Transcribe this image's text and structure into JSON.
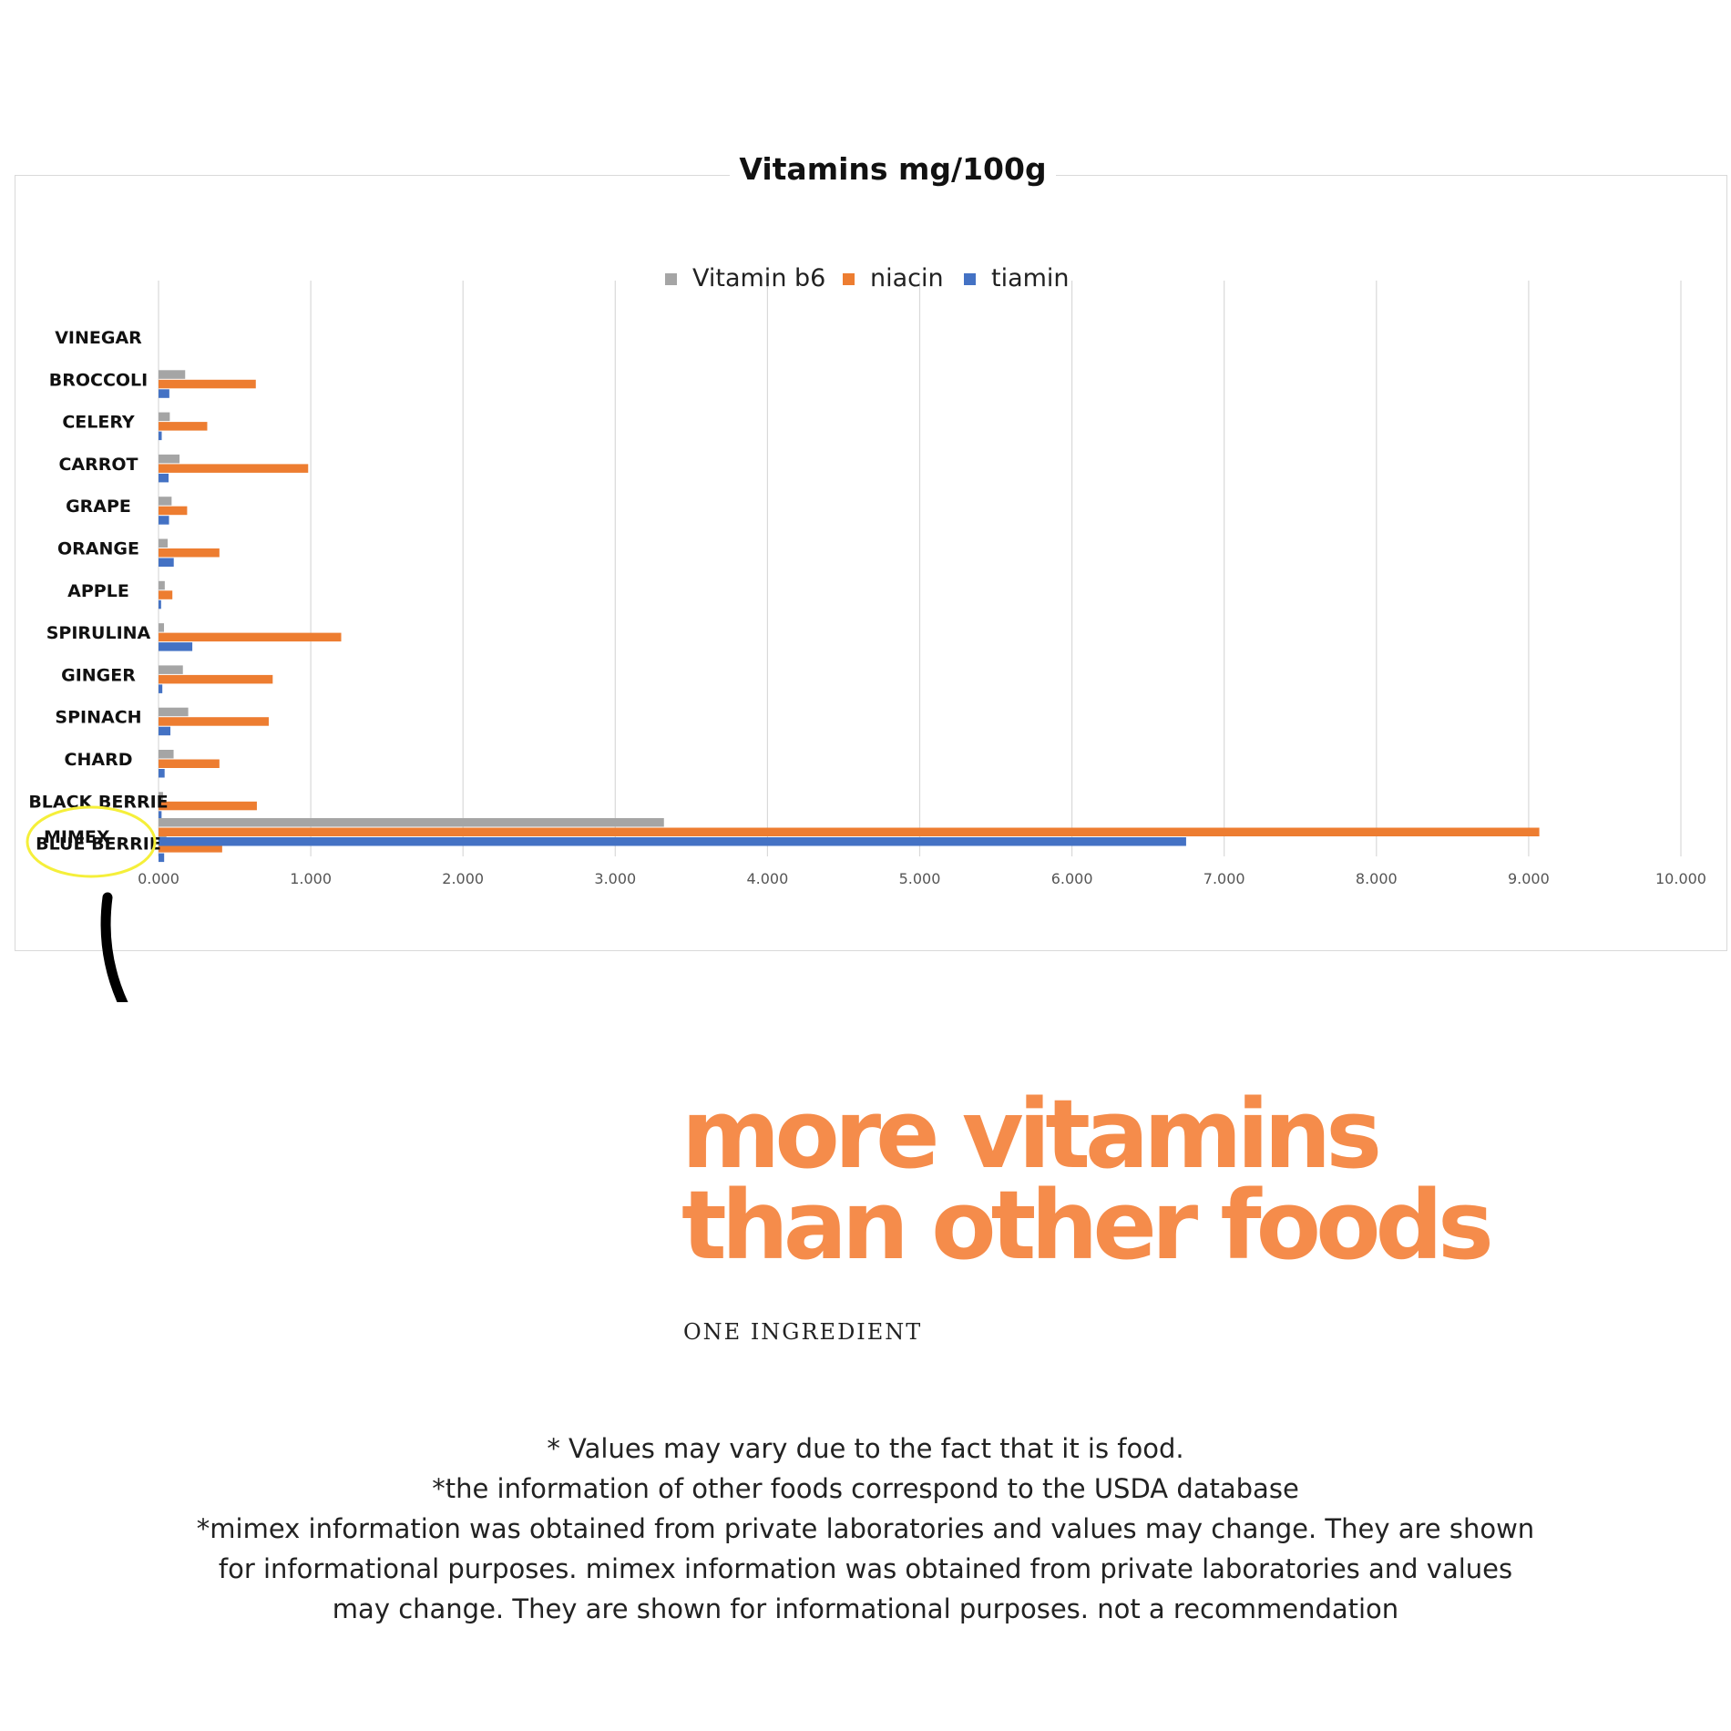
{
  "chart_data": {
    "type": "bar",
    "orientation": "horizontal",
    "title": "Vitamins mg/100g",
    "categories": [
      "VINEGAR",
      "BROCCOLI",
      "CELERY",
      "CARROT",
      "GRAPE",
      "ORANGE",
      "APPLE",
      "SPIRULINA",
      "GINGER",
      "SPINACH",
      "CHARD",
      "BLACK BERRIE",
      "BLUE BERRIE",
      "MIMEX"
    ],
    "series": [
      {
        "name": "Vitamin b6",
        "color": "#a5a5a5",
        "values": [
          0.0,
          0.175,
          0.074,
          0.138,
          0.086,
          0.06,
          0.041,
          0.036,
          0.16,
          0.195,
          0.099,
          0.03,
          0.052,
          3.32
        ]
      },
      {
        "name": "niacin",
        "color": "#ed7d31",
        "values": [
          0.0,
          0.639,
          0.32,
          0.983,
          0.188,
          0.4,
          0.091,
          1.2,
          0.75,
          0.724,
          0.4,
          0.646,
          0.418,
          9.07
        ]
      },
      {
        "name": "tiamin",
        "color": "#4472c4",
        "values": [
          0.0,
          0.071,
          0.021,
          0.066,
          0.069,
          0.1,
          0.017,
          0.222,
          0.025,
          0.078,
          0.04,
          0.02,
          0.037,
          6.75
        ]
      }
    ],
    "xlim": [
      0,
      10
    ],
    "xticks": [
      "0.000",
      "1.000",
      "2.000",
      "3.000",
      "4.000",
      "5.000",
      "6.000",
      "7.000",
      "8.000",
      "9.000",
      "10.000"
    ],
    "grid": true,
    "legend": "top",
    "highlight": "MIMEX"
  },
  "headline": {
    "line1": "more vitamins",
    "line2": "than other foods"
  },
  "subhead": "ONE INGREDIENT",
  "footnotes": [
    "* Values may vary due to the fact that it is food.",
    "*the information of other foods correspond to the USDA database",
    "*mimex information was obtained from private laboratories and values may change. They are shown",
    "for informational purposes. mimex information was obtained from private laboratories and values",
    "may change. They are shown for informational purposes. not a recommendation"
  ],
  "colors": {
    "accent": "#f58c4b",
    "highlight_ring": "#f5ef3a"
  }
}
